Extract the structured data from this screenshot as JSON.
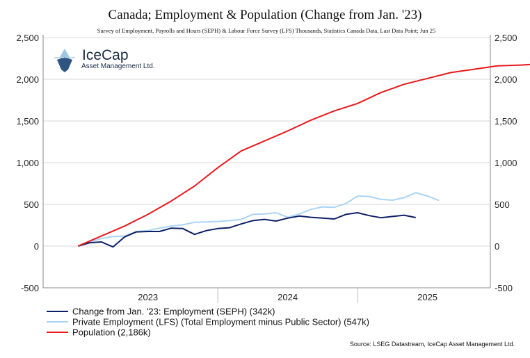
{
  "chart_data": {
    "type": "line",
    "title": "Canada; Employment & Population (Change from Jan. '23)",
    "subtitle": "Survey of Employment, Payrolls and Hours (SEPH) & Labour Force Survey (LFS) Thousands, Statistics Canada Data, Last Data Point; Jun 25",
    "y_ticks": [
      "2,500",
      "2,000",
      "1,500",
      "1,000",
      "500",
      "0",
      "-500"
    ],
    "y_tick_values": [
      2500,
      2000,
      1500,
      1000,
      500,
      0,
      -500
    ],
    "ylim": [
      -500,
      2500
    ],
    "x_ticks": [
      {
        "label": "2023",
        "value": 2023.5
      },
      {
        "label": "2024",
        "value": 2024.5
      },
      {
        "label": "2025",
        "value": 2025.5
      }
    ],
    "x_boundaries": [
      2024.0,
      2025.0
    ],
    "xlim": [
      2022.75,
      2025.95
    ],
    "grid": true,
    "legend_position": "bottom-left",
    "series": [
      {
        "name": "Change from Jan. '23: Employment (SEPH) (342k)",
        "color": "#0b1f66",
        "x_start": 2023.0,
        "step": 0.0833333,
        "values": [
          0,
          40,
          50,
          -10,
          110,
          170,
          175,
          175,
          215,
          210,
          140,
          185,
          210,
          220,
          265,
          305,
          320,
          300,
          335,
          360,
          345,
          335,
          325,
          380,
          400,
          365,
          340,
          355,
          370,
          342
        ]
      },
      {
        "name": "Private Employment  (LFS) (Total Employment minus Public Sector) (547k)",
        "color": "#a9d4f5",
        "x_start": 2023.0,
        "step": 0.0833333,
        "values": [
          0,
          50,
          90,
          115,
          120,
          175,
          185,
          215,
          240,
          255,
          285,
          290,
          295,
          305,
          320,
          380,
          385,
          400,
          345,
          385,
          440,
          470,
          465,
          510,
          600,
          595,
          560,
          550,
          580,
          640,
          600,
          547
        ]
      },
      {
        "name": "Population (2,186k)",
        "color": "#e8191c",
        "x_start": 2023.0,
        "step": 0.1666667,
        "values": [
          0,
          120,
          240,
          380,
          540,
          720,
          940,
          1140,
          1260,
          1380,
          1510,
          1620,
          1710,
          1840,
          1940,
          2010,
          2080,
          2120,
          2160,
          2170,
          2186
        ]
      }
    ],
    "source": "Source: LSEG Datastream, IceCap Asset Management Ltd."
  },
  "logo": {
    "name": "IceCap",
    "tagline": "Asset Management Ltd."
  }
}
